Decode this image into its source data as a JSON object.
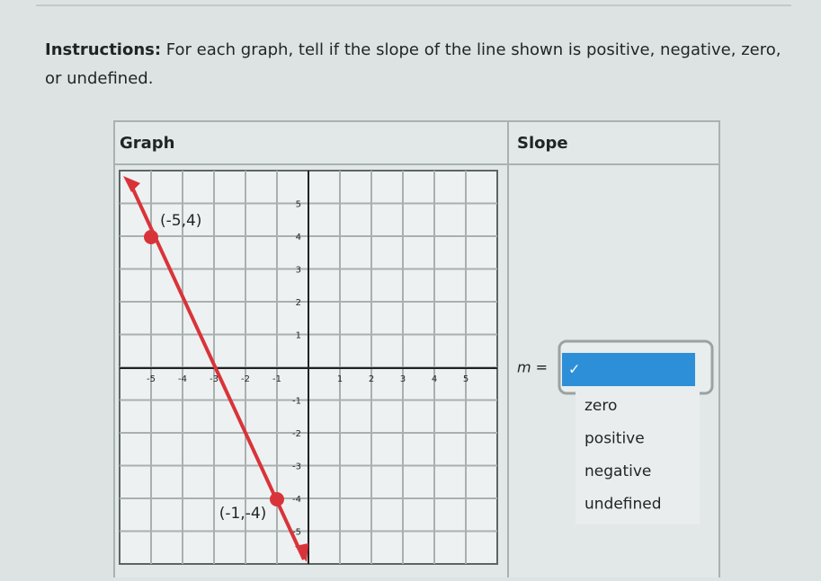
{
  "instructions": {
    "label": "Instructions:",
    "text": "For each graph, tell if the slope of the line shown is positive, negative, zero, or undefined."
  },
  "table": {
    "headers": [
      "Graph",
      "Slope"
    ]
  },
  "graph": {
    "x_tick_labels": [
      "-5",
      "-4",
      "-3",
      "-2",
      "-1",
      "1",
      "2",
      "3",
      "4",
      "5"
    ],
    "y_tick_labels": [
      "5",
      "4",
      "3",
      "2",
      "1",
      "-1",
      "-2",
      "-3",
      "-4",
      "-5"
    ],
    "points": [
      {
        "label": "(-5,4)"
      },
      {
        "label": "(-1,-4)"
      }
    ]
  },
  "answer": {
    "prompt": "m =",
    "selected": "✓",
    "options": [
      "zero",
      "positive",
      "negative",
      "undefined"
    ]
  }
}
